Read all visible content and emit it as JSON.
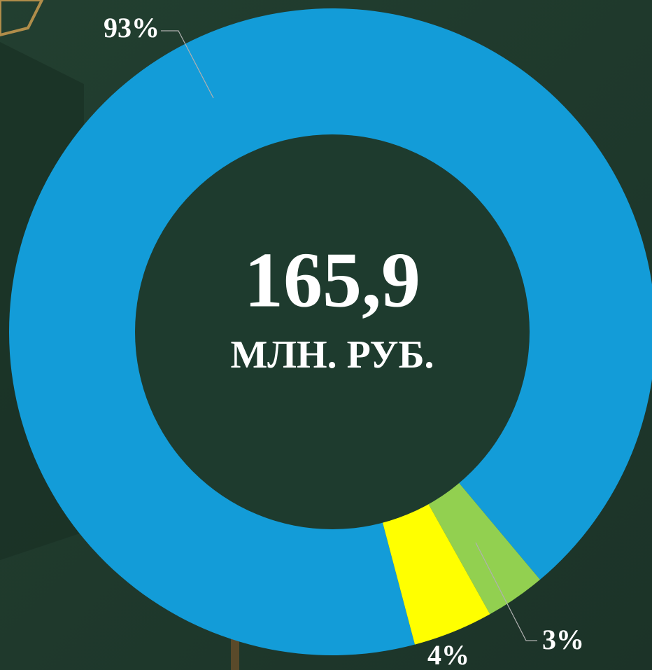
{
  "chart_data": {
    "type": "donut",
    "categories": [
      null,
      null,
      null
    ],
    "values": [
      93,
      3,
      4
    ],
    "value_labels": [
      "93%",
      "3%",
      "4%"
    ],
    "colors": [
      "#139cd8",
      "#92d050",
      "#ffff00"
    ],
    "annotations": [
      "165,9",
      "МЛН. РУБ."
    ]
  }
}
